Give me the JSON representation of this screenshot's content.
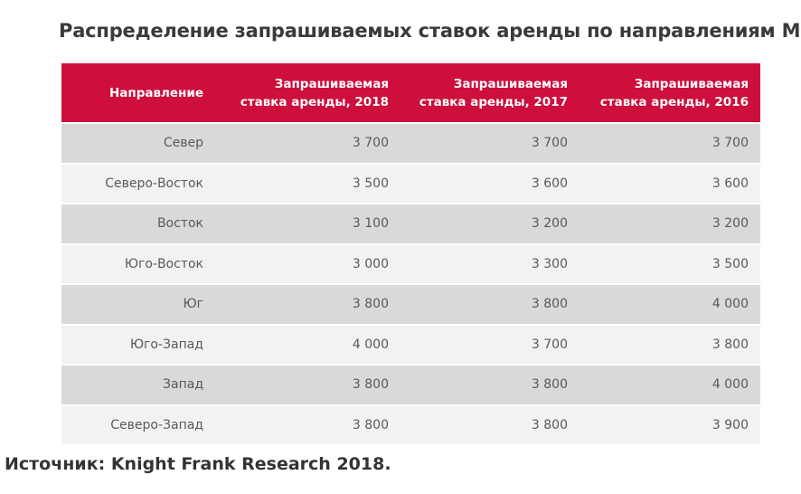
{
  "page": {
    "title": "Распределение запрашиваемых ставок аренды по направлениям МО",
    "source": "Источник: Knight Frank Research 2018."
  },
  "colors": {
    "header_bg": "#ce0e3c",
    "header_text": "#ffffff",
    "row_dark": "#d9d9d9",
    "row_light": "#f2f2f2",
    "body_text": "#595959",
    "title_text": "#3a3a3a"
  },
  "table": {
    "headers": [
      {
        "id": "direction",
        "lines": [
          "Направление",
          ""
        ]
      },
      {
        "id": "rate-2018",
        "lines": [
          "Запрашиваемая",
          "ставка аренды, 2018"
        ]
      },
      {
        "id": "rate-2017",
        "lines": [
          "Запрашиваемая",
          "ставка аренды, 2017"
        ]
      },
      {
        "id": "rate-2016",
        "lines": [
          "Запрашиваемая",
          "ставка аренды, 2016"
        ]
      }
    ],
    "rows": [
      {
        "direction": "Север",
        "rate_2018": "3 700",
        "rate_2017": "3 700",
        "rate_2016": "3 700"
      },
      {
        "direction": "Северо-Восток",
        "rate_2018": "3 500",
        "rate_2017": "3 600",
        "rate_2016": "3 600"
      },
      {
        "direction": "Восток",
        "rate_2018": "3 100",
        "rate_2017": "3 200",
        "rate_2016": "3 200"
      },
      {
        "direction": "Юго-Восток",
        "rate_2018": "3 000",
        "rate_2017": "3 300",
        "rate_2016": "3 500"
      },
      {
        "direction": "Юг",
        "rate_2018": "3 800",
        "rate_2017": "3 800",
        "rate_2016": "4 000"
      },
      {
        "direction": "Юго-Запад",
        "rate_2018": "4 000",
        "rate_2017": "3 700",
        "rate_2016": "3 800"
      },
      {
        "direction": "Запад",
        "rate_2018": "3 800",
        "rate_2017": "3 800",
        "rate_2016": "4 000"
      },
      {
        "direction": "Северо-Запад",
        "rate_2018": "3 800",
        "rate_2017": "3 800",
        "rate_2016": "3 900"
      }
    ]
  },
  "chart_data": {
    "type": "table",
    "title": "Распределение запрашиваемых ставок аренды по направлениям МО",
    "columns": [
      "Направление",
      "Запрашиваемая ставка аренды, 2018",
      "Запрашиваемая ставка аренды, 2017",
      "Запрашиваемая ставка аренды, 2016"
    ],
    "rows": [
      [
        "Север",
        3700,
        3700,
        3700
      ],
      [
        "Северо-Восток",
        3500,
        3600,
        3600
      ],
      [
        "Восток",
        3100,
        3200,
        3200
      ],
      [
        "Юго-Восток",
        3000,
        3300,
        3500
      ],
      [
        "Юг",
        3800,
        3800,
        4000
      ],
      [
        "Юго-Запад",
        4000,
        3700,
        3800
      ],
      [
        "Запад",
        3800,
        3800,
        4000
      ],
      [
        "Северо-Запад",
        3800,
        3800,
        3900
      ]
    ],
    "source": "Источник: Knight Frank Research 2018."
  }
}
